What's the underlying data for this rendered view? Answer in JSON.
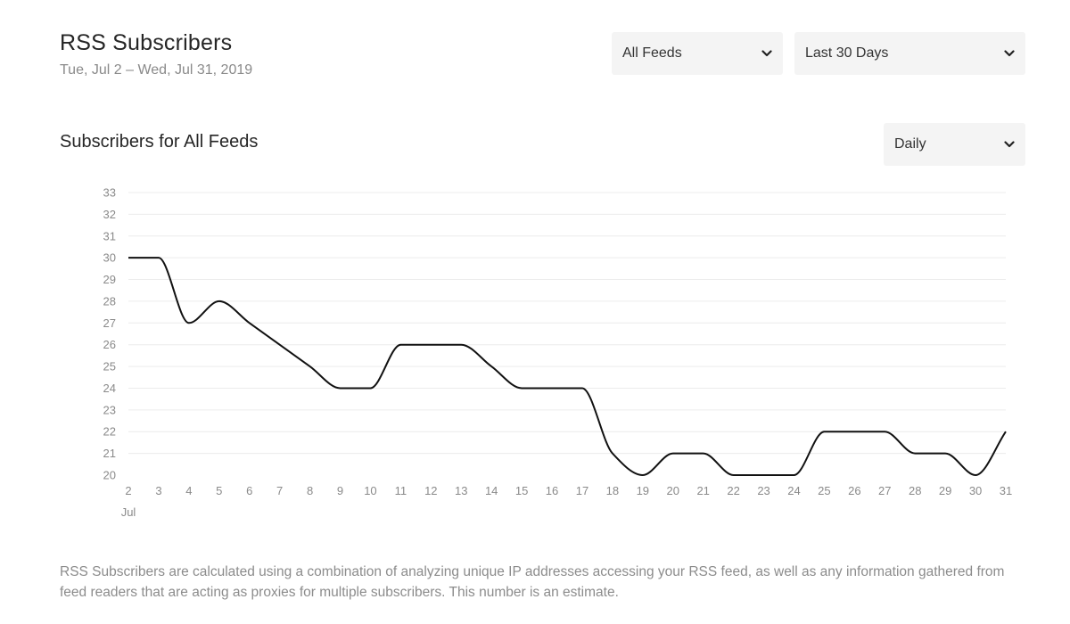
{
  "header": {
    "title": "RSS Subscribers",
    "date_range": "Tue, Jul 2 – Wed, Jul 31, 2019"
  },
  "filters": {
    "feed": "All Feeds",
    "range": "Last 30 Days",
    "interval": "Daily"
  },
  "section_title": "Subscribers for All Feeds",
  "chart_data": {
    "type": "line",
    "x": [
      2,
      3,
      4,
      5,
      6,
      7,
      8,
      9,
      10,
      11,
      12,
      13,
      14,
      15,
      16,
      17,
      18,
      19,
      20,
      21,
      22,
      23,
      24,
      25,
      26,
      27,
      28,
      29,
      30,
      31
    ],
    "x_unit_label": "Jul",
    "series": [
      {
        "values": [
          30,
          30,
          27,
          28,
          27,
          26,
          25,
          24,
          24,
          26,
          26,
          26,
          25,
          24,
          24,
          24,
          21,
          20,
          21,
          21,
          20,
          20,
          20,
          22,
          22,
          22,
          21,
          21,
          20,
          22
        ]
      }
    ],
    "ylim": [
      20,
      33
    ],
    "yticks": [
      20,
      21,
      22,
      23,
      24,
      25,
      26,
      27,
      28,
      29,
      30,
      31,
      32,
      33
    ],
    "grid": true,
    "line_color": "#111111",
    "grid_color": "#ececec"
  },
  "footnote": "RSS Subscribers are calculated using a combination of analyzing unique IP addresses accessing your RSS feed, as well as any information gathered from feed readers that are acting as proxies for multiple subscribers. This number is an estimate."
}
